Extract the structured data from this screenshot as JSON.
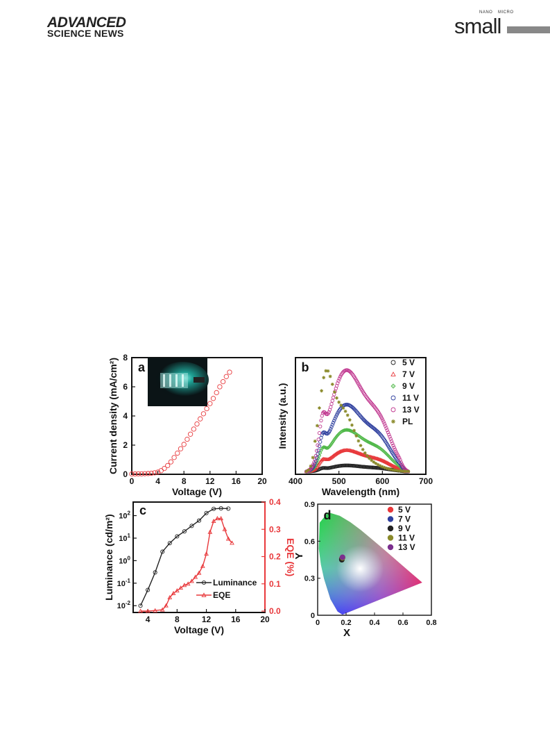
{
  "header": {
    "left_line1": "ADVANCED",
    "left_line2": "SCIENCE NEWS",
    "right_nano": "NANO",
    "right_micro": "MICRO",
    "right_word": "small"
  },
  "chart_data": [
    {
      "panel": "a",
      "type": "scatter",
      "xlabel": "Voltage (V)",
      "ylabel": "Current density (mA/cm²)",
      "xlim": [
        0,
        20
      ],
      "ylim": [
        0,
        8
      ],
      "xticks": [
        0,
        4,
        8,
        12,
        16,
        20
      ],
      "yticks": [
        0,
        2,
        4,
        6,
        8
      ],
      "inset": "device photo",
      "series": [
        {
          "color": "#e8383b",
          "x": [
            0,
            0.5,
            1,
            1.5,
            2,
            2.5,
            3,
            3.5,
            4,
            4.5,
            5,
            5.5,
            6,
            6.5,
            7,
            7.5,
            8,
            8.5,
            9,
            9.5,
            10,
            10.5,
            11,
            11.5,
            12,
            12.5,
            13,
            13.5,
            14,
            14.5,
            15
          ],
          "y": [
            0.02,
            0.02,
            0.03,
            0.03,
            0.04,
            0.05,
            0.07,
            0.1,
            0.15,
            0.25,
            0.4,
            0.6,
            0.85,
            1.15,
            1.45,
            1.75,
            2.05,
            2.4,
            2.75,
            3.1,
            3.45,
            3.8,
            4.15,
            4.5,
            4.85,
            5.2,
            5.6,
            6.0,
            6.35,
            6.7,
            7.0
          ]
        }
      ]
    },
    {
      "panel": "b",
      "type": "line",
      "xlabel": "Wavelength (nm)",
      "ylabel": "Intensity (a.u.)",
      "xlim": [
        400,
        700
      ],
      "xticks": [
        400,
        500,
        600,
        700
      ],
      "legend_placement": "top-right",
      "series": [
        {
          "name": "5 V",
          "color": "#222222",
          "marker": "circle",
          "peak": 0.06
        },
        {
          "name": "7 V",
          "color": "#e8383b",
          "marker": "triangle",
          "peak": 0.21
        },
        {
          "name": "9 V",
          "color": "#4fb848",
          "marker": "diamond",
          "peak": 0.41
        },
        {
          "name": "11 V",
          "color": "#2e3f9e",
          "marker": "circle",
          "peak": 0.66
        },
        {
          "name": "13 V",
          "color": "#c0368f",
          "marker": "circle",
          "peak": 1.0
        },
        {
          "name": "PL",
          "color": "#8a8a2a",
          "marker": "star",
          "peak": 1.0
        }
      ]
    },
    {
      "panel": "c",
      "type": "line",
      "xlabel": "Voltage (V)",
      "ylabel": "Luminance (cd/m²)",
      "ylabel_right": "EQE (%)",
      "xlim": [
        2,
        20
      ],
      "xticks": [
        4,
        8,
        12,
        16,
        20
      ],
      "y_log": true,
      "ylim": [
        0.005,
        400
      ],
      "yticks_labels": [
        "10-2",
        "10-1",
        "100",
        "101",
        "102"
      ],
      "ylim_right": [
        0,
        0.4
      ],
      "yticks_right": [
        "0.0",
        "0.1",
        "0.2",
        "0.3",
        "0.4"
      ],
      "legend_placement": "bottom-right",
      "series": [
        {
          "name": "Luminance",
          "color": "#222222",
          "axis": "left",
          "x": [
            3,
            4,
            5,
            6,
            7,
            8,
            9,
            10,
            11,
            12,
            13,
            14,
            15
          ],
          "y": [
            0.01,
            0.05,
            0.3,
            2.5,
            6,
            12,
            20,
            35,
            60,
            130,
            200,
            210,
            205
          ]
        },
        {
          "name": "EQE",
          "color": "#e8383b",
          "axis": "right",
          "x": [
            3,
            4,
            5,
            6,
            6.5,
            7,
            7.5,
            8,
            8.5,
            9,
            9.5,
            10,
            10.5,
            11,
            11.5,
            12,
            12.5,
            13,
            13.5,
            14,
            14.5,
            15,
            15.5
          ],
          "y": [
            0.0,
            0.0,
            0.002,
            0.005,
            0.02,
            0.05,
            0.065,
            0.075,
            0.085,
            0.095,
            0.1,
            0.11,
            0.125,
            0.14,
            0.165,
            0.21,
            0.29,
            0.33,
            0.34,
            0.34,
            0.3,
            0.265,
            0.25
          ]
        }
      ]
    },
    {
      "panel": "d",
      "type": "scatter",
      "xlabel": "X",
      "ylabel": "Y",
      "xlim": [
        0,
        0.8
      ],
      "ylim": [
        0,
        0.9
      ],
      "xticks": [
        "0",
        "0.2",
        "0.4",
        "0.6",
        "0.8"
      ],
      "yticks": [
        "0",
        "0.3",
        "0.6",
        "0.9"
      ],
      "background": "CIE 1931 chromaticity diagram",
      "legend_placement": "top-right",
      "series": [
        {
          "name": "5 V",
          "color": "#e8383b",
          "x": [
            0.17
          ],
          "y": [
            0.46
          ]
        },
        {
          "name": "7 V",
          "color": "#2e3f9e",
          "x": [
            0.17
          ],
          "y": [
            0.455
          ]
        },
        {
          "name": "9 V",
          "color": "#222222",
          "x": [
            0.17
          ],
          "y": [
            0.45
          ]
        },
        {
          "name": "11 V",
          "color": "#8a8a2a",
          "x": [
            0.175
          ],
          "y": [
            0.465
          ]
        },
        {
          "name": "13 V",
          "color": "#7b2f8e",
          "x": [
            0.175
          ],
          "y": [
            0.47
          ]
        }
      ]
    }
  ]
}
